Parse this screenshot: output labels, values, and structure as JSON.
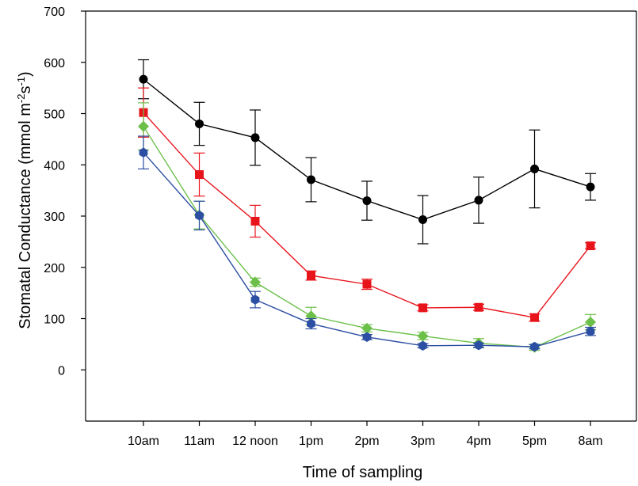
{
  "chart_data": {
    "type": "line",
    "title": "",
    "xlabel": "Time of sampling",
    "ylabel": {
      "prefix": "Stomatal Conductance (mmol m",
      "sup1": "-2",
      "middle": "s",
      "sup2": "-1",
      "suffix": ")"
    },
    "categories": [
      "10am",
      "11am",
      "12 noon",
      "1pm",
      "2pm",
      "3pm",
      "4pm",
      "5pm",
      "8am"
    ],
    "ylim": [
      -100,
      700
    ],
    "yticks": [
      0,
      100,
      200,
      300,
      400,
      500,
      600,
      700
    ],
    "grid": false,
    "legend": "none",
    "series": [
      {
        "color": "#000000",
        "marker": "circle",
        "values": [
          567,
          480,
          453,
          371,
          330,
          293,
          331,
          392,
          357
        ],
        "errors": [
          38,
          42,
          54,
          43,
          38,
          47,
          45,
          76,
          26
        ]
      },
      {
        "color": "#e8141c",
        "marker": "square",
        "values": [
          502,
          381,
          290,
          184,
          167,
          121,
          122,
          102,
          242
        ],
        "errors": [
          48,
          42,
          31,
          9,
          10,
          6,
          6,
          7,
          6
        ]
      },
      {
        "color": "#6cc04a",
        "marker": "diamond",
        "values": [
          475,
          302,
          171,
          105,
          81,
          66,
          52,
          44,
          93
        ],
        "errors": [
          46,
          27,
          8,
          17,
          7,
          7,
          9,
          6,
          15
        ]
      },
      {
        "color": "#2c4ea3",
        "marker": "hexagon",
        "values": [
          424,
          301,
          137,
          90,
          64,
          47,
          48,
          45,
          75
        ],
        "errors": [
          32,
          28,
          16,
          10,
          5,
          4,
          4,
          4,
          8
        ]
      }
    ]
  }
}
